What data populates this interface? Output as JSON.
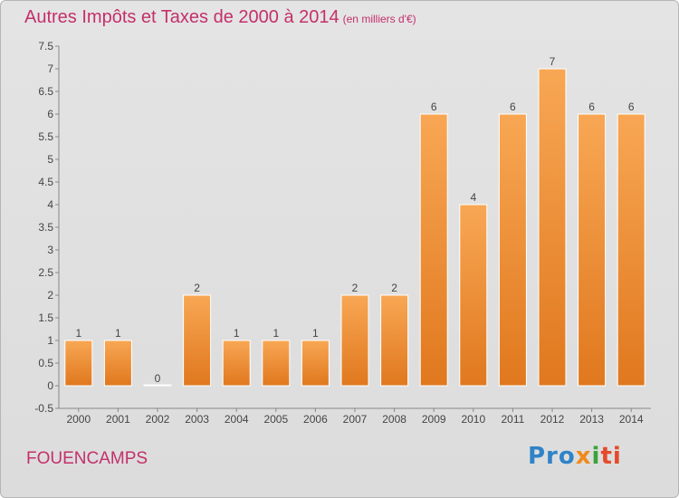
{
  "title": "Autres Impôts et Taxes de 2000 à 2014",
  "title_unit": "(en milliers d'€)",
  "commune": "FOUENCAMPS",
  "logo": {
    "p1": "Pro",
    "p2": "x",
    "p3": "i",
    "p4": "ti"
  },
  "colors": {
    "bar_top": "#f8a754",
    "bar_bottom": "#e0781e",
    "title": "#c4306a"
  },
  "chart_data": {
    "type": "bar",
    "categories": [
      "2000",
      "2001",
      "2002",
      "2003",
      "2004",
      "2005",
      "2006",
      "2007",
      "2008",
      "2009",
      "2010",
      "2011",
      "2012",
      "2013",
      "2014"
    ],
    "values": [
      1,
      1,
      0,
      2,
      1,
      1,
      1,
      2,
      2,
      6,
      4,
      6,
      7,
      6,
      6
    ],
    "data_labels": [
      "1",
      "1",
      "0",
      "2",
      "1",
      "1",
      "1",
      "2",
      "2",
      "6",
      "4",
      "6",
      "7",
      "6",
      "6"
    ],
    "y_ticks": [
      "-0.5",
      "0",
      "0.5",
      "1",
      "1.5",
      "2",
      "2.5",
      "3",
      "3.5",
      "4",
      "4.5",
      "5",
      "5.5",
      "6",
      "6.5",
      "7",
      "7.5"
    ],
    "ylim": [
      -0.5,
      7.5
    ],
    "grid": false,
    "xlabel": "",
    "ylabel": ""
  }
}
